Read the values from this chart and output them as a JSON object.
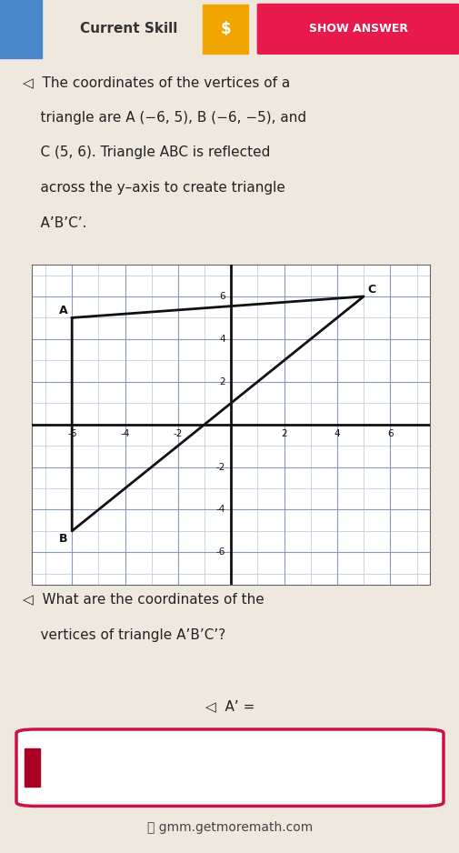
{
  "bg_color": "#eee8df",
  "title_text": "Current Skill",
  "show_answer_text": "SHOW ANSWER",
  "show_answer_bg": "#e8194b",
  "dollar_bg": "#f0a500",
  "problem_text_line1": "◁  The coordinates of the vertices of a",
  "problem_text_line2": "    triangle are A (−6, 5), B (−6, −5), and",
  "problem_text_line3": "    C (5, 6). Triangle ABC is reflected",
  "problem_text_line4": "    across the y–axis to create triangle",
  "problem_text_line5": "    A’B’C’.",
  "question_line1": "◁  What are the coordinates of the",
  "question_line2": "    vertices of triangle A’B’C’?",
  "answer_label": "◁  A’ =",
  "footer_text": "gmm.getmoremath.com",
  "triangle_A": [
    -6,
    5
  ],
  "triangle_B": [
    -6,
    -5
  ],
  "triangle_C": [
    5,
    6
  ],
  "triangle_color": "#111111",
  "grid_minor_color": "#b8c4d8",
  "grid_major_color": "#8899bb",
  "axis_color": "#111111",
  "label_A": "A",
  "label_B": "B",
  "label_C": "C",
  "xlim": [
    -7.5,
    7.5
  ],
  "ylim": [
    -7.5,
    7.5
  ],
  "x_ticks": [
    -6,
    -4,
    -2,
    2,
    4,
    6
  ],
  "y_ticks": [
    -6,
    -4,
    -2,
    2,
    4,
    6
  ],
  "input_box_color": "#cc1144",
  "speaker_color": "#666666",
  "blue_sq_color": "#4a86c8",
  "header_bg": "#d8d0c4"
}
